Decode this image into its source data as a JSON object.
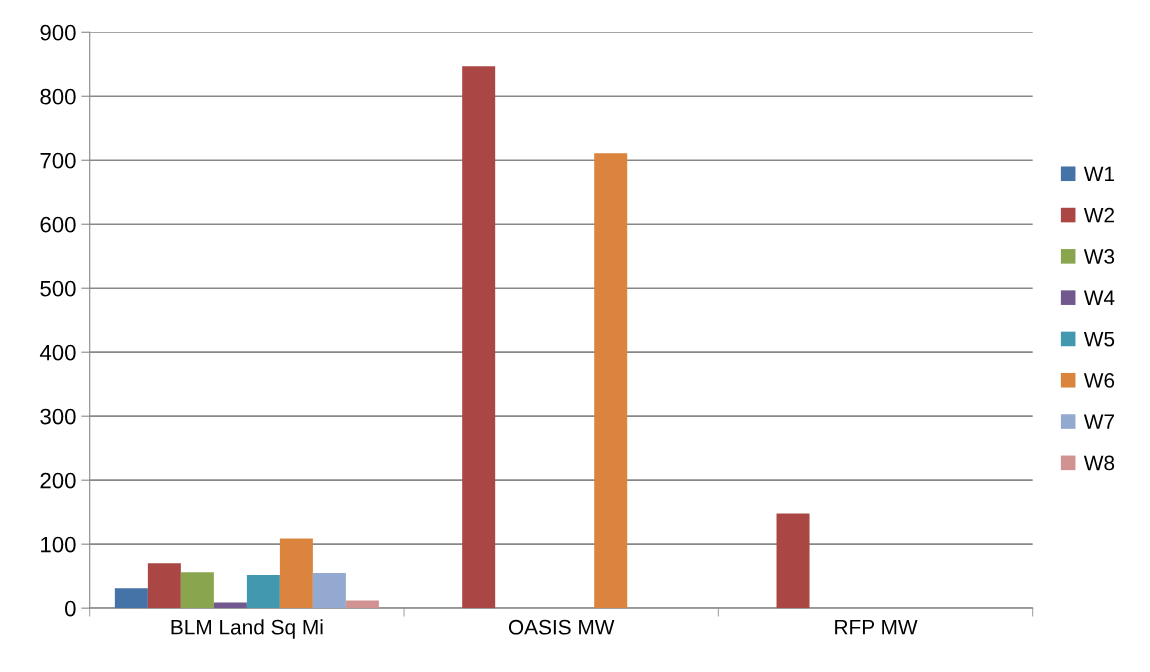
{
  "chart_data": {
    "type": "bar",
    "categories": [
      "BLM Land Sq Mi",
      "OASIS MW",
      "RFP MW"
    ],
    "series": [
      {
        "name": "W1",
        "color": "#4572a7",
        "values": [
          31,
          null,
          null
        ]
      },
      {
        "name": "W2",
        "color": "#aa4643",
        "values": [
          70,
          847,
          148
        ]
      },
      {
        "name": "W3",
        "color": "#89a54e",
        "values": [
          56,
          null,
          null
        ]
      },
      {
        "name": "W4",
        "color": "#71588f",
        "values": [
          9,
          null,
          null
        ]
      },
      {
        "name": "W5",
        "color": "#4198af",
        "values": [
          52,
          null,
          null
        ]
      },
      {
        "name": "W6",
        "color": "#db843d",
        "values": [
          109,
          711,
          null
        ]
      },
      {
        "name": "W7",
        "color": "#93a9cf",
        "values": [
          55,
          null,
          null
        ]
      },
      {
        "name": "W8",
        "color": "#d19392",
        "values": [
          12,
          null,
          null
        ]
      }
    ],
    "ylim": [
      0,
      900
    ],
    "yticks": [
      0,
      100,
      200,
      300,
      400,
      500,
      600,
      700,
      800,
      900
    ],
    "grid": "y",
    "legend": "right"
  }
}
